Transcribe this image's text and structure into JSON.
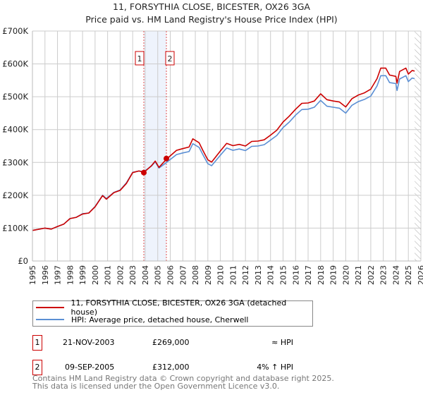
{
  "title": "11, FORSYTHIA CLOSE, BICESTER, OX26 3GA",
  "subtitle": "Price paid vs. HM Land Registry's House Price Index (HPI)",
  "chart_data": {
    "type": "line",
    "title": "11, FORSYTHIA CLOSE, BICESTER, OX26 3GA",
    "ylim": [
      0,
      700000
    ],
    "xlim": [
      1995,
      2026
    ],
    "y_ticks": [
      {
        "v": 0,
        "label": "£0"
      },
      {
        "v": 100000,
        "label": "£100K"
      },
      {
        "v": 200000,
        "label": "£200K"
      },
      {
        "v": 300000,
        "label": "£300K"
      },
      {
        "v": 400000,
        "label": "£400K"
      },
      {
        "v": 500000,
        "label": "£500K"
      },
      {
        "v": 600000,
        "label": "£600K"
      },
      {
        "v": 700000,
        "label": "£700K"
      }
    ],
    "x_ticks": [
      "1995",
      "1996",
      "1997",
      "1998",
      "1999",
      "2000",
      "2001",
      "2002",
      "2003",
      "2004",
      "2005",
      "2006",
      "2007",
      "2008",
      "2009",
      "2010",
      "2011",
      "2012",
      "2013",
      "2014",
      "2015",
      "2016",
      "2017",
      "2018",
      "2019",
      "2020",
      "2021",
      "2022",
      "2023",
      "2024",
      "2025",
      "2026"
    ],
    "x": [
      1995.0,
      1996.0,
      1996.5,
      1997.0,
      1997.5,
      1998.0,
      1998.5,
      1999.0,
      1999.5,
      2000.0,
      2000.6,
      2000.9,
      2001.5,
      2002.0,
      2002.5,
      2003.0,
      2003.5,
      2003.9,
      2004.5,
      2004.8,
      2005.1,
      2005.7,
      2006.5,
      2007.0,
      2007.5,
      2007.8,
      2008.3,
      2008.6,
      2009.0,
      2009.3,
      2010.0,
      2010.5,
      2011.0,
      2011.5,
      2012.0,
      2012.5,
      2013.0,
      2013.5,
      2014.0,
      2014.5,
      2015.0,
      2015.5,
      2016.0,
      2016.5,
      2017.0,
      2017.5,
      2018.0,
      2018.5,
      2019.0,
      2019.5,
      2020.0,
      2020.5,
      2021.0,
      2021.5,
      2022.0,
      2022.5,
      2022.8,
      2023.2,
      2023.5,
      2024.0,
      2024.1,
      2024.3,
      2024.8,
      2025.0,
      2025.3,
      2025.5
    ],
    "series": [
      {
        "name": "11, FORSYTHIA CLOSE, BICESTER, OX26 3GA (detached house)",
        "color": "#cc0000",
        "values": [
          93,
          100,
          97,
          105,
          112,
          129,
          133,
          143,
          146,
          165,
          199,
          188,
          208,
          215,
          236,
          269,
          274,
          270,
          290,
          304,
          285,
          310,
          337,
          342,
          347,
          372,
          360,
          337,
          308,
          301,
          335,
          358,
          351,
          355,
          350,
          364,
          365,
          369,
          383,
          398,
          423,
          441,
          462,
          480,
          481,
          487,
          509,
          491,
          487,
          484,
          469,
          494,
          505,
          512,
          523,
          555,
          587,
          587,
          566,
          562,
          541,
          577,
          587,
          569,
          580,
          578
        ]
      },
      {
        "name": "HPI: Average price, detached house, Cherwell",
        "color": "#5b8fd4",
        "values": [
          93,
          100,
          97,
          105,
          112,
          129,
          133,
          144,
          146,
          166,
          200,
          190,
          209,
          216,
          238,
          270,
          274,
          272,
          289,
          302,
          283,
          300,
          324,
          329,
          333,
          357,
          346,
          324,
          296,
          290,
          322,
          344,
          337,
          341,
          336,
          349,
          350,
          354,
          368,
          382,
          406,
          423,
          444,
          461,
          462,
          468,
          489,
          471,
          468,
          465,
          450,
          474,
          485,
          492,
          502,
          533,
          564,
          564,
          543,
          540,
          519,
          554,
          564,
          546,
          557,
          555
        ]
      }
    ],
    "value_unit": "thousands GBP",
    "sales": [
      {
        "label": "1",
        "x": 2003.89,
        "value": 269000
      },
      {
        "label": "2",
        "x": 2005.69,
        "value": 312000
      }
    ],
    "shaded_between_sales": true,
    "hatched_after": 2025.5
  },
  "legend": {
    "items": [
      {
        "label": "11, FORSYTHIA CLOSE, BICESTER, OX26 3GA (detached house)",
        "color": "#cc0000"
      },
      {
        "label": "HPI: Average price, detached house, Cherwell",
        "color": "#5b8fd4"
      }
    ]
  },
  "transactions": [
    {
      "num": "1",
      "date": "21-NOV-2003",
      "price": "£269,000",
      "hpi": "≈ HPI"
    },
    {
      "num": "2",
      "date": "09-SEP-2005",
      "price": "£312,000",
      "hpi": "4% ↑ HPI"
    }
  ],
  "footer": {
    "line1": "Contains HM Land Registry data © Crown copyright and database right 2025.",
    "line2": "This data is licensed under the Open Government Licence v3.0."
  }
}
